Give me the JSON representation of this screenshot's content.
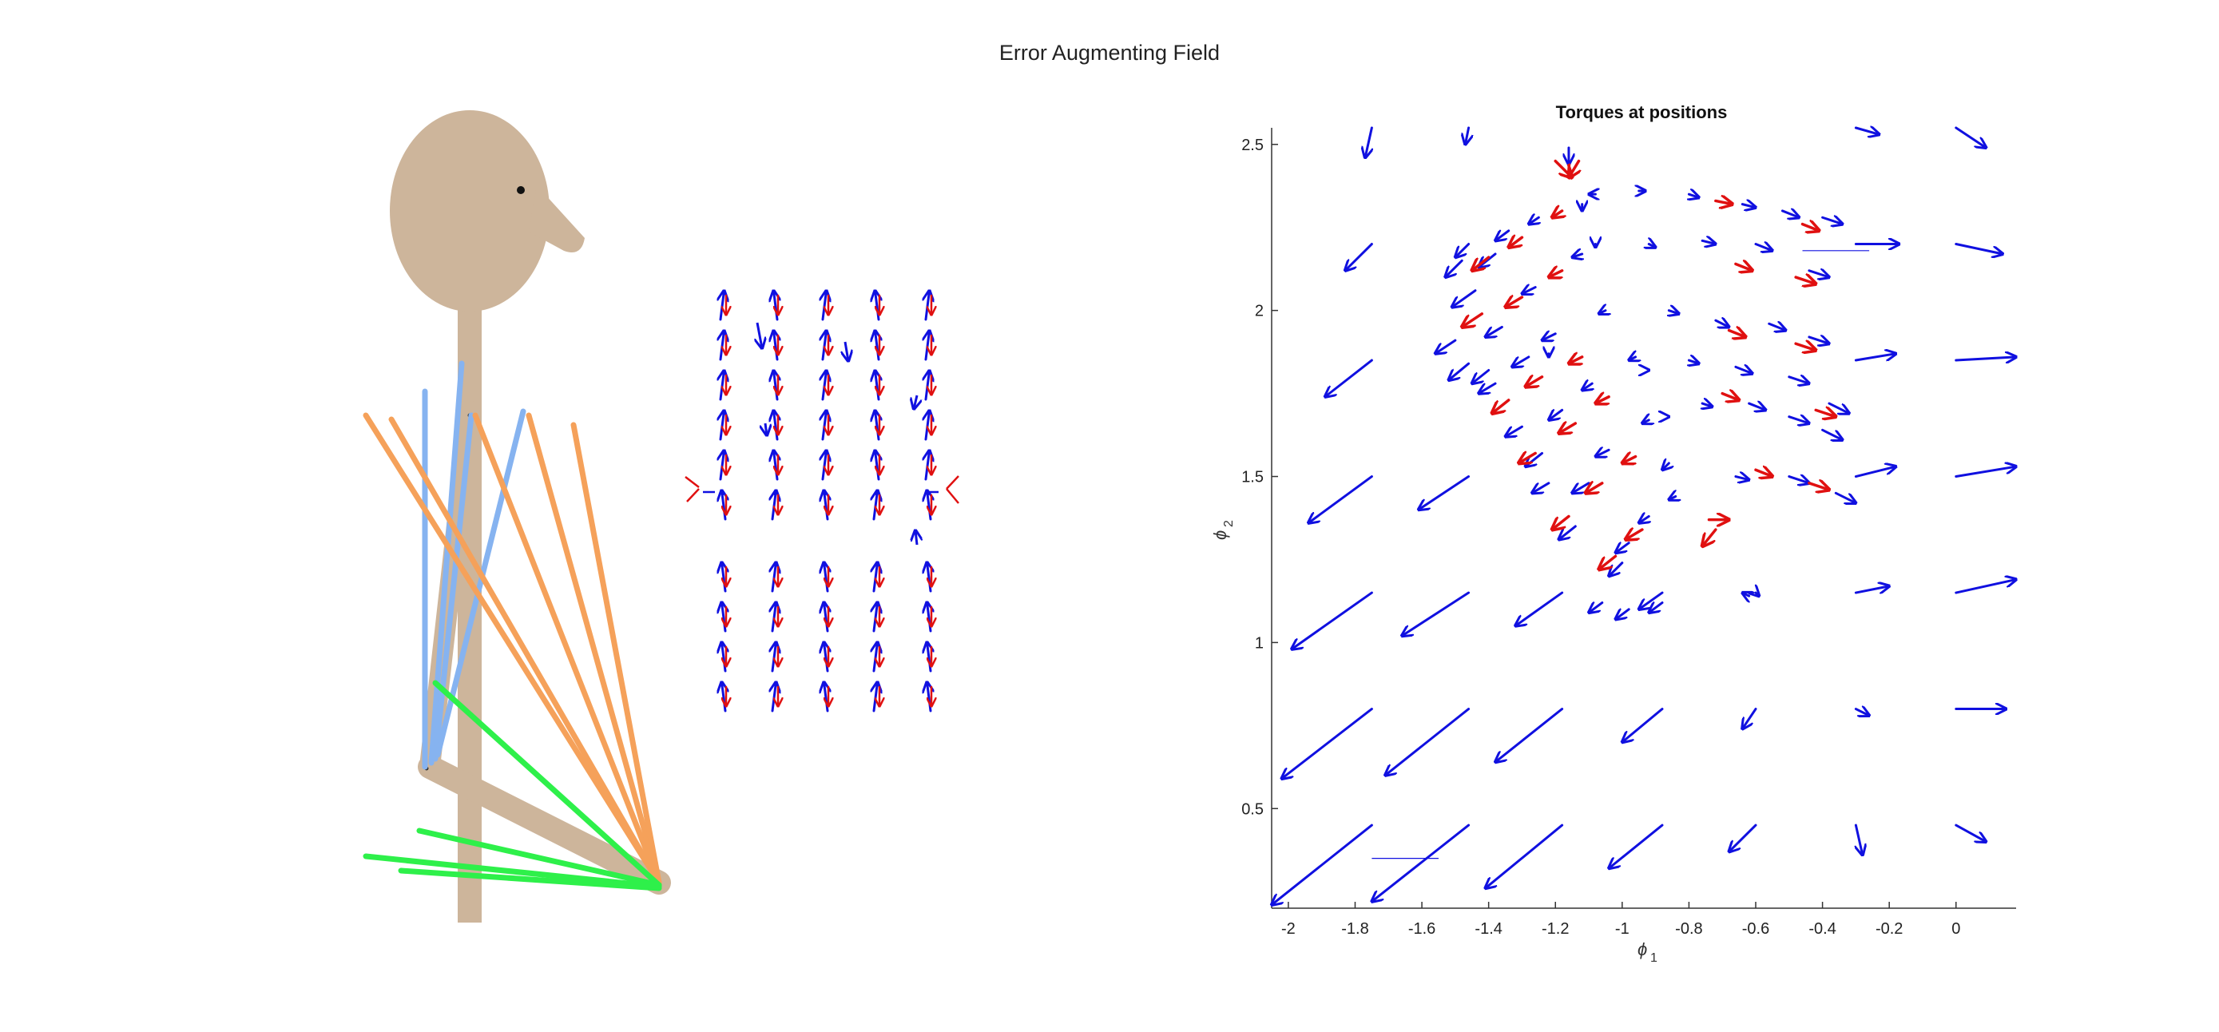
{
  "figure": {
    "title": "Error Augmenting Field"
  },
  "colors": {
    "skin": "#cdb59b",
    "upper_arm_muscle": "#86b3f0",
    "bi_muscle": "#f5a15a",
    "forearm_muscle": "#2ef04a",
    "torque_arrow": "#1010e0",
    "field_arrow": "#e01010",
    "axis": "#333333"
  },
  "chart_data": {
    "type": "quiver",
    "title": "Torques at positions",
    "xlabel_symbol": "ϕ",
    "xlabel_subscript": "1",
    "ylabel_symbol": "ϕ",
    "ylabel_subscript": "2",
    "xlim": [
      -2.05,
      0.18
    ],
    "ylim": [
      0.2,
      2.55
    ],
    "xticks": [
      -2,
      -1.8,
      -1.6,
      -1.4,
      -1.2,
      -1,
      -0.8,
      -0.6,
      -0.4,
      -0.2,
      0
    ],
    "xtick_labels": [
      "-2",
      "-1.8",
      "-1.6",
      "-1.4",
      "-1.2",
      "-1",
      "-0.8",
      "-0.6",
      "-0.4",
      "-0.2",
      "0"
    ],
    "yticks": [
      0.5,
      1,
      1.5,
      2,
      2.5
    ],
    "ytick_labels": [
      "0.5",
      "1",
      "1.5",
      "2",
      "2.5"
    ],
    "grid": false,
    "series": [
      {
        "role": "torque field (grid)",
        "color": "blue",
        "arrows": [
          [
            -1.75,
            0.45,
            -0.3,
            -0.24
          ],
          [
            -1.46,
            0.45,
            -0.29,
            -0.23
          ],
          [
            -1.18,
            0.45,
            -0.23,
            -0.19
          ],
          [
            -0.88,
            0.45,
            -0.16,
            -0.13
          ],
          [
            -0.6,
            0.45,
            -0.08,
            -0.08
          ],
          [
            -0.3,
            0.45,
            0.02,
            -0.09
          ],
          [
            0.0,
            0.45,
            0.09,
            -0.05
          ],
          [
            -1.75,
            0.8,
            -0.27,
            -0.21
          ],
          [
            -1.46,
            0.8,
            -0.25,
            -0.2
          ],
          [
            -1.18,
            0.8,
            -0.2,
            -0.16
          ],
          [
            -0.88,
            0.8,
            -0.12,
            -0.1
          ],
          [
            -0.6,
            0.8,
            -0.04,
            -0.06
          ],
          [
            -0.3,
            0.8,
            0.04,
            -0.02
          ],
          [
            0.0,
            0.8,
            0.15,
            0.0
          ],
          [
            -1.75,
            1.15,
            -0.24,
            -0.17
          ],
          [
            -1.46,
            1.15,
            -0.2,
            -0.13
          ],
          [
            -1.18,
            1.15,
            -0.14,
            -0.1
          ],
          [
            -0.88,
            1.15,
            -0.07,
            -0.05
          ],
          [
            -0.6,
            1.15,
            0.01,
            -0.01
          ],
          [
            -0.3,
            1.15,
            0.1,
            0.02
          ],
          [
            0.0,
            1.15,
            0.18,
            0.04
          ],
          [
            -1.75,
            1.5,
            -0.19,
            -0.14
          ],
          [
            -1.46,
            1.5,
            -0.15,
            -0.1
          ],
          [
            -0.3,
            1.5,
            0.12,
            0.03
          ],
          [
            0.0,
            1.5,
            0.18,
            0.03
          ],
          [
            -1.75,
            1.85,
            -0.14,
            -0.11
          ],
          [
            -0.3,
            1.85,
            0.12,
            0.02
          ],
          [
            0.0,
            1.85,
            0.18,
            0.01
          ],
          [
            -1.75,
            2.2,
            -0.08,
            -0.08
          ],
          [
            -1.46,
            2.2,
            -0.04,
            -0.04
          ],
          [
            -0.3,
            2.2,
            0.13,
            0.0
          ],
          [
            0.0,
            2.2,
            0.14,
            -0.03
          ],
          [
            -1.75,
            2.55,
            -0.02,
            -0.09
          ],
          [
            -1.46,
            2.55,
            -0.01,
            -0.05
          ],
          [
            -0.3,
            2.55,
            0.07,
            -0.02
          ],
          [
            0.0,
            2.55,
            0.09,
            -0.06
          ]
        ]
      },
      {
        "role": "torques along trajectories",
        "color": "blue",
        "arrows": [
          [
            -1.48,
            2.15,
            -0.05,
            -0.05
          ],
          [
            -1.44,
            2.06,
            -0.07,
            -0.05
          ],
          [
            -1.38,
            2.17,
            -0.05,
            -0.04
          ],
          [
            -1.34,
            2.24,
            -0.04,
            -0.03
          ],
          [
            -1.25,
            2.28,
            -0.03,
            -0.02
          ],
          [
            -1.08,
            2.35,
            -0.02,
            0.0
          ],
          [
            -0.95,
            2.36,
            0.02,
            0.0
          ],
          [
            -0.8,
            2.35,
            0.03,
            -0.01
          ],
          [
            -0.64,
            2.32,
            0.04,
            -0.01
          ],
          [
            -0.52,
            2.3,
            0.05,
            -0.02
          ],
          [
            -0.4,
            2.28,
            0.06,
            -0.02
          ],
          [
            -1.5,
            1.91,
            -0.06,
            -0.04
          ],
          [
            -1.46,
            1.84,
            -0.06,
            -0.05
          ],
          [
            -1.36,
            1.95,
            -0.05,
            -0.03
          ],
          [
            -1.26,
            2.07,
            -0.04,
            -0.02
          ],
          [
            -1.12,
            2.17,
            -0.03,
            -0.01
          ],
          [
            -0.92,
            2.2,
            0.02,
            -0.01
          ],
          [
            -0.76,
            2.21,
            0.04,
            -0.01
          ],
          [
            -0.6,
            2.2,
            0.05,
            -0.02
          ],
          [
            -0.44,
            2.12,
            0.06,
            -0.02
          ],
          [
            -1.4,
            1.82,
            -0.05,
            -0.04
          ],
          [
            -1.38,
            1.78,
            -0.05,
            -0.03
          ],
          [
            -1.28,
            1.86,
            -0.05,
            -0.03
          ],
          [
            -1.2,
            1.93,
            -0.04,
            -0.02
          ],
          [
            -1.05,
            2.0,
            -0.02,
            -0.01
          ],
          [
            -0.86,
            2.0,
            0.03,
            -0.01
          ],
          [
            -0.72,
            1.97,
            0.04,
            -0.02
          ],
          [
            -0.56,
            1.96,
            0.05,
            -0.02
          ],
          [
            -0.44,
            1.92,
            0.06,
            -0.02
          ],
          [
            -1.3,
            1.65,
            -0.05,
            -0.03
          ],
          [
            -1.24,
            1.57,
            -0.05,
            -0.04
          ],
          [
            -1.18,
            1.7,
            -0.04,
            -0.03
          ],
          [
            -1.09,
            1.78,
            -0.03,
            -0.02
          ],
          [
            -0.96,
            1.86,
            -0.02,
            -0.01
          ],
          [
            -0.8,
            1.85,
            0.03,
            -0.01
          ],
          [
            -0.66,
            1.83,
            0.05,
            -0.02
          ],
          [
            -0.5,
            1.8,
            0.06,
            -0.02
          ],
          [
            -0.38,
            1.72,
            0.06,
            -0.03
          ],
          [
            -1.22,
            1.48,
            -0.05,
            -0.03
          ],
          [
            -1.14,
            1.35,
            -0.05,
            -0.04
          ],
          [
            -1.1,
            1.48,
            -0.05,
            -0.03
          ],
          [
            -1.04,
            1.58,
            -0.04,
            -0.02
          ],
          [
            -0.92,
            1.67,
            -0.02,
            -0.01
          ],
          [
            -0.76,
            1.72,
            0.03,
            -0.01
          ],
          [
            -0.62,
            1.72,
            0.05,
            -0.02
          ],
          [
            -0.5,
            1.68,
            0.06,
            -0.02
          ],
          [
            -0.4,
            1.64,
            0.06,
            -0.03
          ],
          [
            -1.0,
            1.24,
            -0.04,
            -0.04
          ],
          [
            -0.98,
            1.3,
            -0.04,
            -0.03
          ],
          [
            -0.92,
            1.38,
            -0.03,
            -0.02
          ],
          [
            -0.84,
            1.44,
            -0.02,
            -0.01
          ],
          [
            -0.66,
            1.5,
            0.04,
            -0.01
          ],
          [
            -0.5,
            1.5,
            0.06,
            -0.02
          ],
          [
            -0.36,
            1.45,
            0.06,
            -0.03
          ],
          [
            -1.06,
            1.12,
            -0.04,
            -0.03
          ],
          [
            -0.98,
            1.1,
            -0.04,
            -0.03
          ],
          [
            -0.88,
            1.12,
            -0.04,
            -0.03
          ],
          [
            -0.62,
            1.14,
            -0.02,
            0.01
          ],
          [
            -1.16,
            2.49,
            0.0,
            -0.05
          ],
          [
            -1.12,
            2.32,
            0.0,
            -0.02
          ],
          [
            -1.08,
            2.2,
            0.0,
            -0.01
          ],
          [
            -1.22,
            1.87,
            0.0,
            -0.01
          ],
          [
            -0.92,
            1.82,
            0.0,
            0.0
          ],
          [
            -0.86,
            1.68,
            0.0,
            0.0
          ],
          [
            -0.86,
            1.54,
            -0.02,
            -0.02
          ]
        ]
      },
      {
        "role": "error augmenting field",
        "color": "red",
        "arrows": [
          [
            -1.2,
            2.45,
            0.05,
            -0.05
          ],
          [
            -1.13,
            2.45,
            -0.03,
            -0.05
          ],
          [
            -1.4,
            2.16,
            -0.05,
            -0.04
          ],
          [
            -1.3,
            2.22,
            -0.04,
            -0.03
          ],
          [
            -1.18,
            2.3,
            -0.03,
            -0.02
          ],
          [
            -0.72,
            2.33,
            0.05,
            -0.01
          ],
          [
            -0.46,
            2.26,
            0.05,
            -0.02
          ],
          [
            -1.42,
            1.99,
            -0.06,
            -0.04
          ],
          [
            -1.3,
            2.04,
            -0.05,
            -0.03
          ],
          [
            -1.18,
            2.12,
            -0.04,
            -0.02
          ],
          [
            -0.66,
            2.14,
            0.05,
            -0.02
          ],
          [
            -0.48,
            2.1,
            0.06,
            -0.02
          ],
          [
            -1.34,
            1.73,
            -0.05,
            -0.04
          ],
          [
            -1.24,
            1.8,
            -0.05,
            -0.03
          ],
          [
            -1.12,
            1.86,
            -0.04,
            -0.02
          ],
          [
            -0.68,
            1.94,
            0.05,
            -0.02
          ],
          [
            -0.48,
            1.9,
            0.06,
            -0.02
          ],
          [
            -1.26,
            1.57,
            -0.05,
            -0.03
          ],
          [
            -1.14,
            1.66,
            -0.05,
            -0.03
          ],
          [
            -1.04,
            1.74,
            -0.04,
            -0.02
          ],
          [
            -0.7,
            1.75,
            0.05,
            -0.02
          ],
          [
            -0.42,
            1.7,
            0.06,
            -0.02
          ],
          [
            -1.16,
            1.38,
            -0.05,
            -0.04
          ],
          [
            -1.06,
            1.48,
            -0.05,
            -0.03
          ],
          [
            -0.96,
            1.56,
            -0.04,
            -0.02
          ],
          [
            -0.6,
            1.52,
            0.05,
            -0.02
          ],
          [
            -0.44,
            1.48,
            0.06,
            -0.02
          ],
          [
            -1.02,
            1.26,
            -0.05,
            -0.04
          ],
          [
            -0.94,
            1.34,
            -0.05,
            -0.03
          ],
          [
            -0.74,
            1.37,
            0.06,
            0.0
          ],
          [
            -0.72,
            1.34,
            -0.04,
            -0.05
          ]
        ]
      },
      {
        "role": "thin reference lines",
        "color": "blue",
        "segments": [
          [
            -1.75,
            0.35,
            -1.55,
            0.35
          ],
          [
            -0.46,
            2.18,
            -0.26,
            2.18
          ]
        ]
      }
    ]
  },
  "stick_figure": {
    "type": "arm model",
    "muscle_groups": [
      "upper arm muscles",
      "biarticular muscles",
      "forearm muscles"
    ]
  },
  "workspace_field": {
    "type": "quiver",
    "columns_x": [
      0,
      1,
      2,
      3,
      4
    ],
    "rows_y": [
      -4,
      -3,
      -2,
      -1,
      0,
      1,
      2,
      3,
      4
    ]
  }
}
